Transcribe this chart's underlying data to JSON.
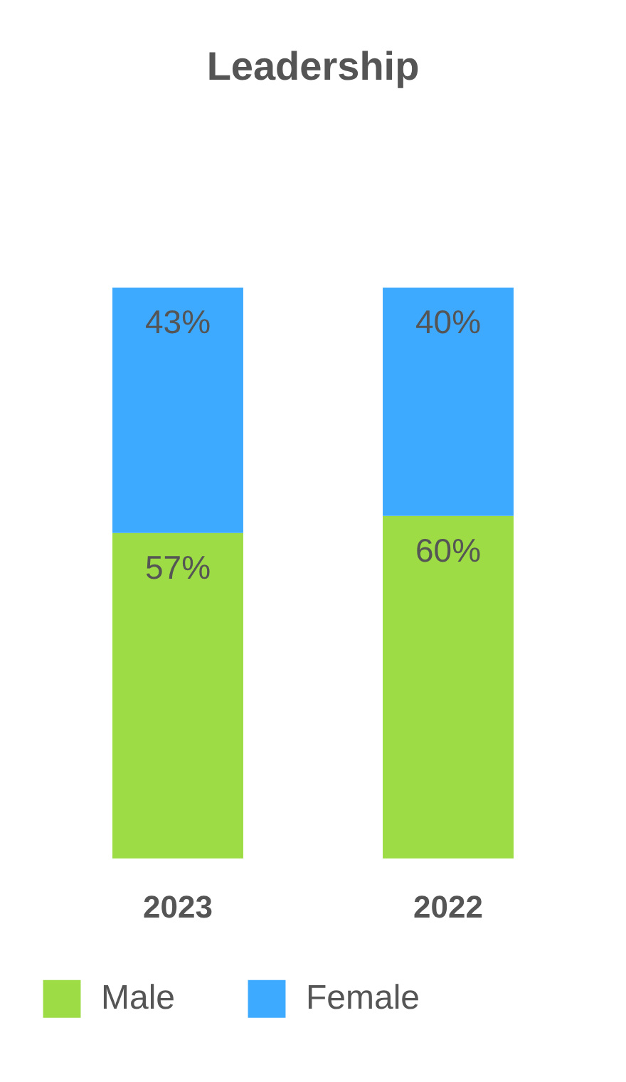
{
  "chart_data": {
    "type": "bar",
    "title": "Leadership",
    "categories": [
      "2023",
      "2022"
    ],
    "stacked": true,
    "legend": "bottom",
    "tick_labels": "x",
    "series": [
      {
        "name": "Male",
        "color": "#9ddc44",
        "values": [
          57,
          60
        ],
        "value_labels": [
          "57%",
          "60%"
        ]
      },
      {
        "name": "Female",
        "color": "#3eaaff",
        "values": [
          43,
          40
        ],
        "value_labels": [
          "43%",
          "40%"
        ]
      }
    ]
  }
}
